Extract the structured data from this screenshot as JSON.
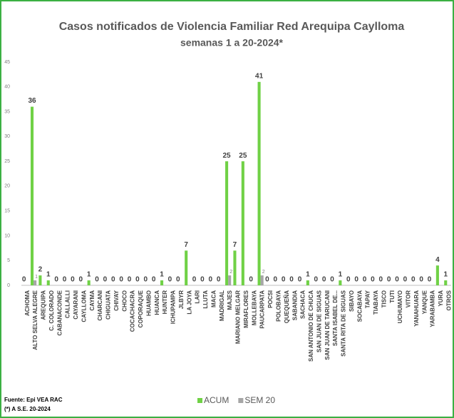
{
  "chart_data": {
    "type": "bar",
    "title": "Casos notificados  de Violencia Familiar Red Arequipa Caylloma",
    "subtitle": "semanas 1 a 20-2024*",
    "categories": [
      "ACHOMA",
      "ALTO SELVA ALEGRE",
      "AREQUIPA",
      "C. COLORADO",
      "CABANACONDE",
      "CALLALLI",
      "CAYARANI",
      "CAYLLOMA",
      "CAYMA",
      "CHARCANI",
      "CHIGUATA",
      "CHIVAY",
      "CHOCO",
      "COCACHACRA",
      "COPORAQUE",
      "HUAMBO",
      "HUANCA",
      "HUNTER",
      "ICHUPAMPA",
      "JLBYR",
      "LA JOYA",
      "LARI",
      "LLUTA",
      "MACA",
      "MADRIGAL",
      "MAJES",
      "MARIANO MELGAR",
      "MIRAFLORES",
      "MOLLEBAYA",
      "PAUCARPATA",
      "POCSI",
      "POLOBAYA",
      "QUEQUEÑA",
      "SABANDIA",
      "SACHACA",
      "SAN ANTONIO DE CHUCA",
      "SAN JUAN DE SIGUAS",
      "SAN JUAN DE TARUCANI",
      "SANTA ISABEL DE...",
      "SANTA RITA DE SIGUAS",
      "SIBAYO",
      "SOCABAYA",
      "TAPAY",
      "TIABAYA",
      "TISCO",
      "TUTI",
      "UCHUMAYO",
      "VITOR",
      "YANAHUARA",
      "YANQUE",
      "YARABAMBA",
      "YURA",
      "OTROS"
    ],
    "series": [
      {
        "name": "ACUM",
        "color": "#70d146",
        "values": [
          0,
          36,
          2,
          1,
          0,
          0,
          0,
          0,
          1,
          0,
          0,
          0,
          0,
          0,
          0,
          0,
          0,
          1,
          0,
          0,
          7,
          0,
          0,
          0,
          0,
          25,
          7,
          25,
          0,
          41,
          0,
          0,
          0,
          0,
          0,
          1,
          0,
          0,
          0,
          1,
          0,
          0,
          0,
          0,
          0,
          0,
          0,
          0,
          0,
          0,
          0,
          4,
          1
        ]
      },
      {
        "name": "SEM 20",
        "color": "#a6a6a6",
        "values": [
          0,
          1,
          0,
          0,
          0,
          0,
          0,
          0,
          0,
          0,
          0,
          0,
          0,
          0,
          0,
          0,
          0,
          0,
          0,
          0,
          0,
          0,
          0,
          0,
          0,
          2,
          0,
          0,
          0,
          2,
          0,
          0,
          0,
          0,
          0,
          0,
          0,
          0,
          0,
          0,
          0,
          0,
          0,
          0,
          0,
          0,
          0,
          0,
          0,
          0,
          0,
          0,
          0
        ]
      }
    ],
    "ylim": [
      0,
      45
    ],
    "yticks": [
      0,
      5,
      10,
      15,
      20,
      25,
      30,
      35,
      40,
      45
    ],
    "grid": false,
    "source": "Fuente: Epi VEA RAC",
    "note": "(*) A S.E. 20-2024"
  }
}
